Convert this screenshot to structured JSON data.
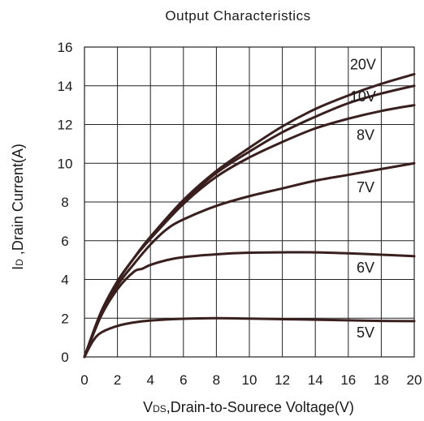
{
  "chart_data": {
    "type": "line",
    "title": "Output  Characteristics",
    "xlabel": "VDS,Drain-to-Sourece Voltage(V)",
    "xlabel_parts": {
      "symbol": "V",
      "subscript": "DS",
      "rest": ",Drain-to-Sourece Voltage(V)"
    },
    "ylabel": "ID ,Drain Current(A)",
    "ylabel_parts": {
      "symbol": "I",
      "subscript": "D",
      "rest": " ,Drain Current(A)"
    },
    "xlim": [
      0,
      20
    ],
    "ylim": [
      0,
      16
    ],
    "xticks": [
      "0",
      "2",
      "4",
      "6",
      "8",
      "10",
      "12",
      "14",
      "16",
      "18",
      "20"
    ],
    "yticks": [
      "0",
      "2",
      "4",
      "6",
      "8",
      "10",
      "12",
      "14",
      "16"
    ],
    "grid": true,
    "series": [
      {
        "name": "20V",
        "x": [
          0,
          1,
          2,
          3,
          4,
          6,
          8,
          10,
          12,
          14,
          16,
          18,
          20
        ],
        "y": [
          0,
          2.3,
          3.9,
          5.1,
          6.2,
          8.1,
          9.6,
          10.8,
          11.9,
          12.8,
          13.5,
          14.1,
          14.6
        ]
      },
      {
        "name": "10V",
        "x": [
          0,
          1,
          2,
          3,
          4,
          6,
          8,
          10,
          12,
          14,
          16,
          18,
          20
        ],
        "y": [
          0,
          2.3,
          3.9,
          5.1,
          6.2,
          8.0,
          9.5,
          10.6,
          11.6,
          12.4,
          13.1,
          13.6,
          14.0
        ]
      },
      {
        "name": "8V",
        "x": [
          0,
          1,
          2,
          3,
          4,
          6,
          8,
          10,
          12,
          14,
          16,
          18,
          20
        ],
        "y": [
          0,
          2.3,
          3.9,
          5.1,
          6.1,
          7.9,
          9.3,
          10.3,
          11.1,
          11.8,
          12.3,
          12.7,
          13.0
        ]
      },
      {
        "name": "7V",
        "x": [
          0,
          1,
          2,
          3,
          4,
          5,
          6,
          8,
          10,
          12,
          14,
          16,
          18,
          20
        ],
        "y": [
          0,
          2.2,
          3.7,
          4.8,
          5.8,
          6.6,
          7.1,
          7.8,
          8.3,
          8.7,
          9.1,
          9.4,
          9.7,
          10.0
        ]
      },
      {
        "name": "6V",
        "x": [
          0,
          1,
          2,
          3,
          3.5,
          4,
          5,
          6,
          8,
          10,
          12,
          14,
          16,
          18,
          20
        ],
        "y": [
          0,
          2.1,
          3.5,
          4.4,
          4.55,
          4.75,
          5.0,
          5.15,
          5.3,
          5.38,
          5.4,
          5.4,
          5.35,
          5.28,
          5.2
        ]
      },
      {
        "name": "5V",
        "x": [
          0,
          0.5,
          1,
          2,
          3,
          4,
          6,
          8,
          10,
          12,
          14,
          16,
          18,
          20
        ],
        "y": [
          0,
          0.8,
          1.25,
          1.6,
          1.78,
          1.88,
          1.97,
          2.0,
          1.98,
          1.95,
          1.92,
          1.89,
          1.86,
          1.85
        ]
      }
    ],
    "series_label_positions": [
      {
        "name": "20V",
        "x": 16.1,
        "y": 14.85
      },
      {
        "name": "10V",
        "x": 16.1,
        "y": 13.2
      },
      {
        "name": "8V",
        "x": 16.5,
        "y": 11.2
      },
      {
        "name": "7V",
        "x": 16.5,
        "y": 8.5
      },
      {
        "name": "6V",
        "x": 16.5,
        "y": 4.35
      },
      {
        "name": "5V",
        "x": 16.5,
        "y": 1.0
      }
    ]
  }
}
